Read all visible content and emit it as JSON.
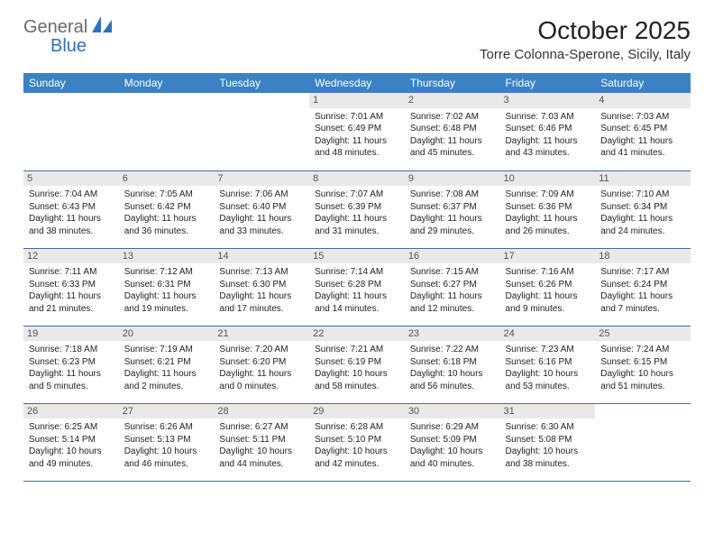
{
  "brand": {
    "part1": "General",
    "part2": "Blue"
  },
  "title": "October 2025",
  "location": "Torre Colonna-Sperone, Sicily, Italy",
  "colors": {
    "header_bg": "#3b82c4",
    "header_text": "#ffffff",
    "row_border": "#3b6fa0",
    "daynum_bg": "#e9e9e9",
    "daynum_text": "#555555",
    "body_text": "#222222",
    "brand_gray": "#6a6a6a",
    "brand_blue": "#2d72b8",
    "background": "#ffffff"
  },
  "typography": {
    "title_fontsize": 28,
    "location_fontsize": 15,
    "dayheader_fontsize": 12,
    "cell_fontsize": 10,
    "daynum_fontsize": 11
  },
  "day_headers": [
    "Sunday",
    "Monday",
    "Tuesday",
    "Wednesday",
    "Thursday",
    "Friday",
    "Saturday"
  ],
  "weeks": [
    [
      null,
      null,
      null,
      {
        "n": "1",
        "sr": "7:01 AM",
        "ss": "6:49 PM",
        "dl": "11 hours and 48 minutes."
      },
      {
        "n": "2",
        "sr": "7:02 AM",
        "ss": "6:48 PM",
        "dl": "11 hours and 45 minutes."
      },
      {
        "n": "3",
        "sr": "7:03 AM",
        "ss": "6:46 PM",
        "dl": "11 hours and 43 minutes."
      },
      {
        "n": "4",
        "sr": "7:03 AM",
        "ss": "6:45 PM",
        "dl": "11 hours and 41 minutes."
      }
    ],
    [
      {
        "n": "5",
        "sr": "7:04 AM",
        "ss": "6:43 PM",
        "dl": "11 hours and 38 minutes."
      },
      {
        "n": "6",
        "sr": "7:05 AM",
        "ss": "6:42 PM",
        "dl": "11 hours and 36 minutes."
      },
      {
        "n": "7",
        "sr": "7:06 AM",
        "ss": "6:40 PM",
        "dl": "11 hours and 33 minutes."
      },
      {
        "n": "8",
        "sr": "7:07 AM",
        "ss": "6:39 PM",
        "dl": "11 hours and 31 minutes."
      },
      {
        "n": "9",
        "sr": "7:08 AM",
        "ss": "6:37 PM",
        "dl": "11 hours and 29 minutes."
      },
      {
        "n": "10",
        "sr": "7:09 AM",
        "ss": "6:36 PM",
        "dl": "11 hours and 26 minutes."
      },
      {
        "n": "11",
        "sr": "7:10 AM",
        "ss": "6:34 PM",
        "dl": "11 hours and 24 minutes."
      }
    ],
    [
      {
        "n": "12",
        "sr": "7:11 AM",
        "ss": "6:33 PM",
        "dl": "11 hours and 21 minutes."
      },
      {
        "n": "13",
        "sr": "7:12 AM",
        "ss": "6:31 PM",
        "dl": "11 hours and 19 minutes."
      },
      {
        "n": "14",
        "sr": "7:13 AM",
        "ss": "6:30 PM",
        "dl": "11 hours and 17 minutes."
      },
      {
        "n": "15",
        "sr": "7:14 AM",
        "ss": "6:28 PM",
        "dl": "11 hours and 14 minutes."
      },
      {
        "n": "16",
        "sr": "7:15 AM",
        "ss": "6:27 PM",
        "dl": "11 hours and 12 minutes."
      },
      {
        "n": "17",
        "sr": "7:16 AM",
        "ss": "6:26 PM",
        "dl": "11 hours and 9 minutes."
      },
      {
        "n": "18",
        "sr": "7:17 AM",
        "ss": "6:24 PM",
        "dl": "11 hours and 7 minutes."
      }
    ],
    [
      {
        "n": "19",
        "sr": "7:18 AM",
        "ss": "6:23 PM",
        "dl": "11 hours and 5 minutes."
      },
      {
        "n": "20",
        "sr": "7:19 AM",
        "ss": "6:21 PM",
        "dl": "11 hours and 2 minutes."
      },
      {
        "n": "21",
        "sr": "7:20 AM",
        "ss": "6:20 PM",
        "dl": "11 hours and 0 minutes."
      },
      {
        "n": "22",
        "sr": "7:21 AM",
        "ss": "6:19 PM",
        "dl": "10 hours and 58 minutes."
      },
      {
        "n": "23",
        "sr": "7:22 AM",
        "ss": "6:18 PM",
        "dl": "10 hours and 56 minutes."
      },
      {
        "n": "24",
        "sr": "7:23 AM",
        "ss": "6:16 PM",
        "dl": "10 hours and 53 minutes."
      },
      {
        "n": "25",
        "sr": "7:24 AM",
        "ss": "6:15 PM",
        "dl": "10 hours and 51 minutes."
      }
    ],
    [
      {
        "n": "26",
        "sr": "6:25 AM",
        "ss": "5:14 PM",
        "dl": "10 hours and 49 minutes."
      },
      {
        "n": "27",
        "sr": "6:26 AM",
        "ss": "5:13 PM",
        "dl": "10 hours and 46 minutes."
      },
      {
        "n": "28",
        "sr": "6:27 AM",
        "ss": "5:11 PM",
        "dl": "10 hours and 44 minutes."
      },
      {
        "n": "29",
        "sr": "6:28 AM",
        "ss": "5:10 PM",
        "dl": "10 hours and 42 minutes."
      },
      {
        "n": "30",
        "sr": "6:29 AM",
        "ss": "5:09 PM",
        "dl": "10 hours and 40 minutes."
      },
      {
        "n": "31",
        "sr": "6:30 AM",
        "ss": "5:08 PM",
        "dl": "10 hours and 38 minutes."
      },
      null
    ]
  ],
  "labels": {
    "sunrise": "Sunrise:",
    "sunset": "Sunset:",
    "daylight": "Daylight:"
  }
}
